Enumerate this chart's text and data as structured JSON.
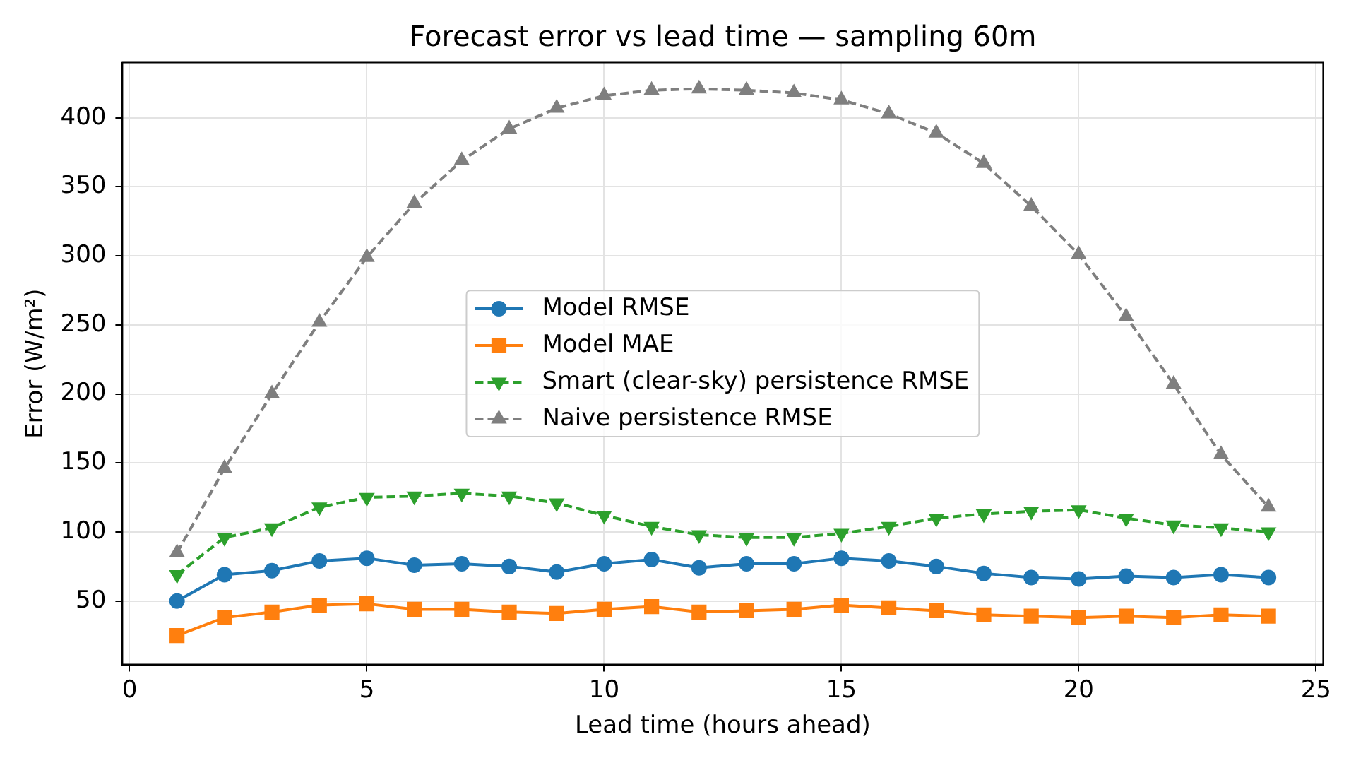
{
  "chart_data": {
    "type": "line",
    "title": "Forecast error vs lead time — sampling 60m",
    "xlabel": "Lead time (hours ahead)",
    "ylabel": "Error (W/m²)",
    "x": [
      1,
      2,
      3,
      4,
      5,
      6,
      7,
      8,
      9,
      10,
      11,
      12,
      13,
      14,
      15,
      16,
      17,
      18,
      19,
      20,
      21,
      22,
      23,
      24
    ],
    "series": [
      {
        "name": "Model RMSE",
        "color": "#1f77b4",
        "marker": "circle",
        "line_style": "solid",
        "values": [
          50,
          69,
          72,
          79,
          81,
          76,
          77,
          75,
          71,
          77,
          80,
          74,
          77,
          77,
          81,
          79,
          75,
          70,
          67,
          66,
          68,
          67,
          69,
          67
        ]
      },
      {
        "name": "Model MAE",
        "color": "#ff7f0e",
        "marker": "square",
        "line_style": "solid",
        "values": [
          25,
          38,
          42,
          47,
          48,
          44,
          44,
          42,
          41,
          44,
          46,
          42,
          43,
          44,
          47,
          45,
          43,
          40,
          39,
          38,
          39,
          38,
          40,
          39
        ]
      },
      {
        "name": "Smart (clear-sky) persistence RMSE",
        "color": "#2ca02c",
        "marker": "triangle_down",
        "line_style": "dashed",
        "values": [
          69,
          96,
          103,
          118,
          125,
          126,
          128,
          126,
          121,
          112,
          104,
          98,
          96,
          96,
          99,
          104,
          110,
          113,
          115,
          116,
          110,
          105,
          103,
          100
        ]
      },
      {
        "name": "Naive persistence RMSE",
        "color": "#7f7f7f",
        "marker": "triangle",
        "line_style": "dashed",
        "values": [
          85,
          146,
          200,
          252,
          299,
          338,
          369,
          392,
          407,
          416,
          420,
          421,
          420,
          418,
          413,
          403,
          389,
          367,
          336,
          301,
          256,
          207,
          156,
          118
        ]
      }
    ],
    "xlim": [
      -0.15,
      25.15
    ],
    "ylim": [
      4,
      440
    ],
    "xticks": [
      0,
      5,
      10,
      15,
      20,
      25
    ],
    "yticks": [
      50,
      100,
      150,
      200,
      250,
      300,
      350,
      400
    ],
    "grid": true,
    "legend": "center"
  }
}
